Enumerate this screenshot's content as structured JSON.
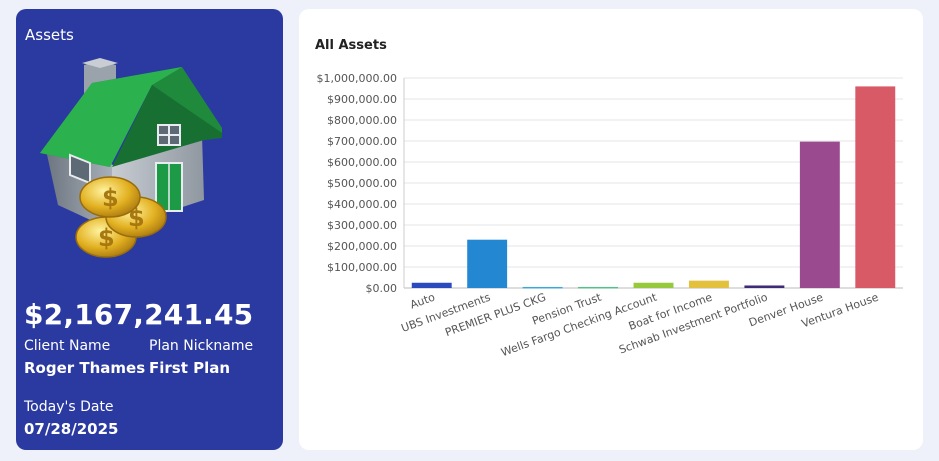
{
  "summary": {
    "title": "Assets",
    "total": "$2,167,241.45",
    "client_name_label": "Client Name",
    "client_name": "Roger Thames",
    "plan_nickname_label": "Plan Nickname",
    "plan_nickname": "First Plan",
    "date_label": "Today's Date",
    "date": "07/28/2025"
  },
  "chart_data": {
    "type": "bar",
    "title": "All Assets",
    "categories": [
      "Auto",
      "UBS Investments",
      "PREMIER PLUS CKG",
      "Pension Trust",
      "Wells Fargo Checking Account",
      "Boat for Income",
      "Schwab Investment Portfolio",
      "Denver House",
      "Ventura House"
    ],
    "values": [
      25000,
      230000,
      5000,
      5000,
      25000,
      35000,
      12000,
      697000,
      960000
    ],
    "colors": [
      "#2a4bbd",
      "#2387d1",
      "#3ea7d6",
      "#55c08a",
      "#97c93d",
      "#e3c03e",
      "#3d2b78",
      "#9a4a8f",
      "#d85a66"
    ],
    "yticks": [
      "$0.00",
      "$100,000.00",
      "$200,000.00",
      "$300,000.00",
      "$400,000.00",
      "$500,000.00",
      "$600,000.00",
      "$700,000.00",
      "$800,000.00",
      "$900,000.00",
      "$1,000,000.00"
    ],
    "ylim": [
      0,
      1000000
    ],
    "grid": true,
    "xlabel": "",
    "ylabel": ""
  }
}
